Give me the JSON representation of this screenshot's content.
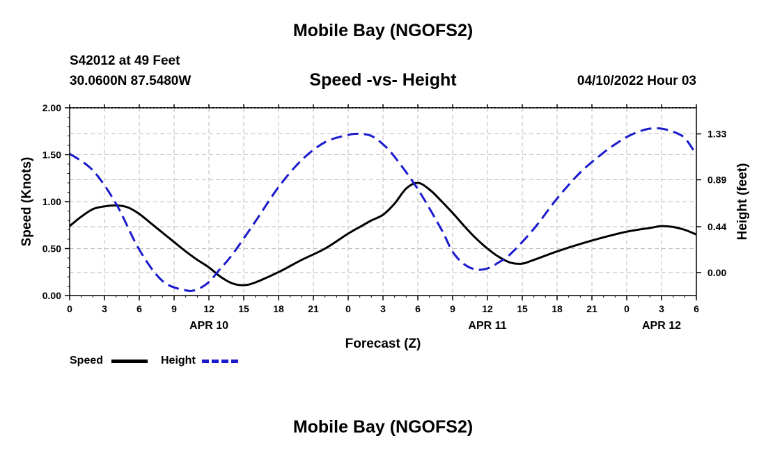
{
  "page": {
    "title": "Mobile Bay (NGOFS2)",
    "station": "S42012 at 49 Feet",
    "coords": "30.0600N  87.5480W",
    "date": "04/10/2022 Hour 03",
    "footer_title": "Mobile Bay (NGOFS2)"
  },
  "colors": {
    "speed": "#000000",
    "height": "#1a1acc",
    "grid": "#bbbbbb"
  },
  "chart_data": {
    "type": "line",
    "title": "Speed -vs- Height",
    "xlabel": "Forecast (Z)",
    "ylabel": "Speed (Knots)",
    "y2label": "Height (feet)",
    "xlim": [
      0,
      54
    ],
    "ylim": [
      0,
      2.0
    ],
    "y2lim": [
      -0.22,
      1.58
    ],
    "x_tick_values": [
      0,
      3,
      6,
      9,
      12,
      15,
      18,
      21,
      24,
      27,
      30,
      33,
      36,
      39,
      42,
      45,
      48,
      51,
      54
    ],
    "x_tick_labels": [
      "0",
      "3",
      "6",
      "9",
      "12",
      "15",
      "18",
      "21",
      "0",
      "3",
      "6",
      "9",
      "12",
      "15",
      "18",
      "21",
      "0",
      "3",
      "6"
    ],
    "y_ticks": [
      0.0,
      0.5,
      1.0,
      1.5,
      2.0
    ],
    "y_tick_labels": [
      "0.00",
      "0.50",
      "1.00",
      "1.50",
      "2.00"
    ],
    "y2_ticks": [
      0.0,
      0.44,
      0.89,
      1.33
    ],
    "y2_tick_labels": [
      "0.00",
      "0.44",
      "0.89",
      "1.33"
    ],
    "day_labels": [
      {
        "x": 12,
        "label": "APR 10"
      },
      {
        "x": 36,
        "label": "APR 11"
      },
      {
        "x": 51,
        "label": "APR 12"
      }
    ],
    "legend": [
      {
        "name": "Speed",
        "style": "solid"
      },
      {
        "name": "Height",
        "style": "dashed"
      }
    ],
    "series": [
      {
        "name": "Speed",
        "axis": "left",
        "x": [
          0,
          1,
          2,
          3,
          4,
          5,
          6,
          7,
          8,
          9,
          10,
          11,
          12,
          13,
          14,
          15,
          16,
          18,
          20,
          22,
          24,
          25,
          26,
          27,
          28,
          29,
          30,
          31,
          32,
          33,
          34,
          35,
          36,
          37,
          38,
          39,
          40,
          42,
          44,
          46,
          48,
          50,
          51,
          52,
          53,
          54
        ],
        "values": [
          0.74,
          0.84,
          0.92,
          0.95,
          0.96,
          0.94,
          0.87,
          0.77,
          0.67,
          0.57,
          0.47,
          0.38,
          0.3,
          0.2,
          0.13,
          0.11,
          0.14,
          0.25,
          0.38,
          0.5,
          0.66,
          0.73,
          0.8,
          0.86,
          0.98,
          1.14,
          1.2,
          1.13,
          1.01,
          0.88,
          0.74,
          0.61,
          0.5,
          0.41,
          0.35,
          0.34,
          0.38,
          0.47,
          0.55,
          0.62,
          0.68,
          0.72,
          0.74,
          0.73,
          0.7,
          0.65
        ]
      },
      {
        "name": "Height",
        "axis": "right",
        "x": [
          0,
          2,
          4,
          6,
          8,
          10,
          11,
          12,
          13,
          14,
          16,
          18,
          20,
          22,
          24,
          25,
          26,
          27,
          28,
          30,
          32,
          33,
          34,
          35,
          36,
          37,
          38,
          40,
          42,
          44,
          46,
          47,
          48,
          49,
          50,
          51,
          52,
          53,
          54
        ],
        "values": [
          1.14,
          0.98,
          0.66,
          0.22,
          -0.08,
          -0.17,
          -0.16,
          -0.09,
          0.04,
          0.17,
          0.49,
          0.82,
          1.08,
          1.25,
          1.32,
          1.33,
          1.31,
          1.23,
          1.11,
          0.8,
          0.42,
          0.2,
          0.08,
          0.03,
          0.04,
          0.1,
          0.18,
          0.42,
          0.71,
          0.96,
          1.15,
          1.23,
          1.3,
          1.35,
          1.38,
          1.38,
          1.35,
          1.29,
          1.13
        ]
      }
    ]
  }
}
